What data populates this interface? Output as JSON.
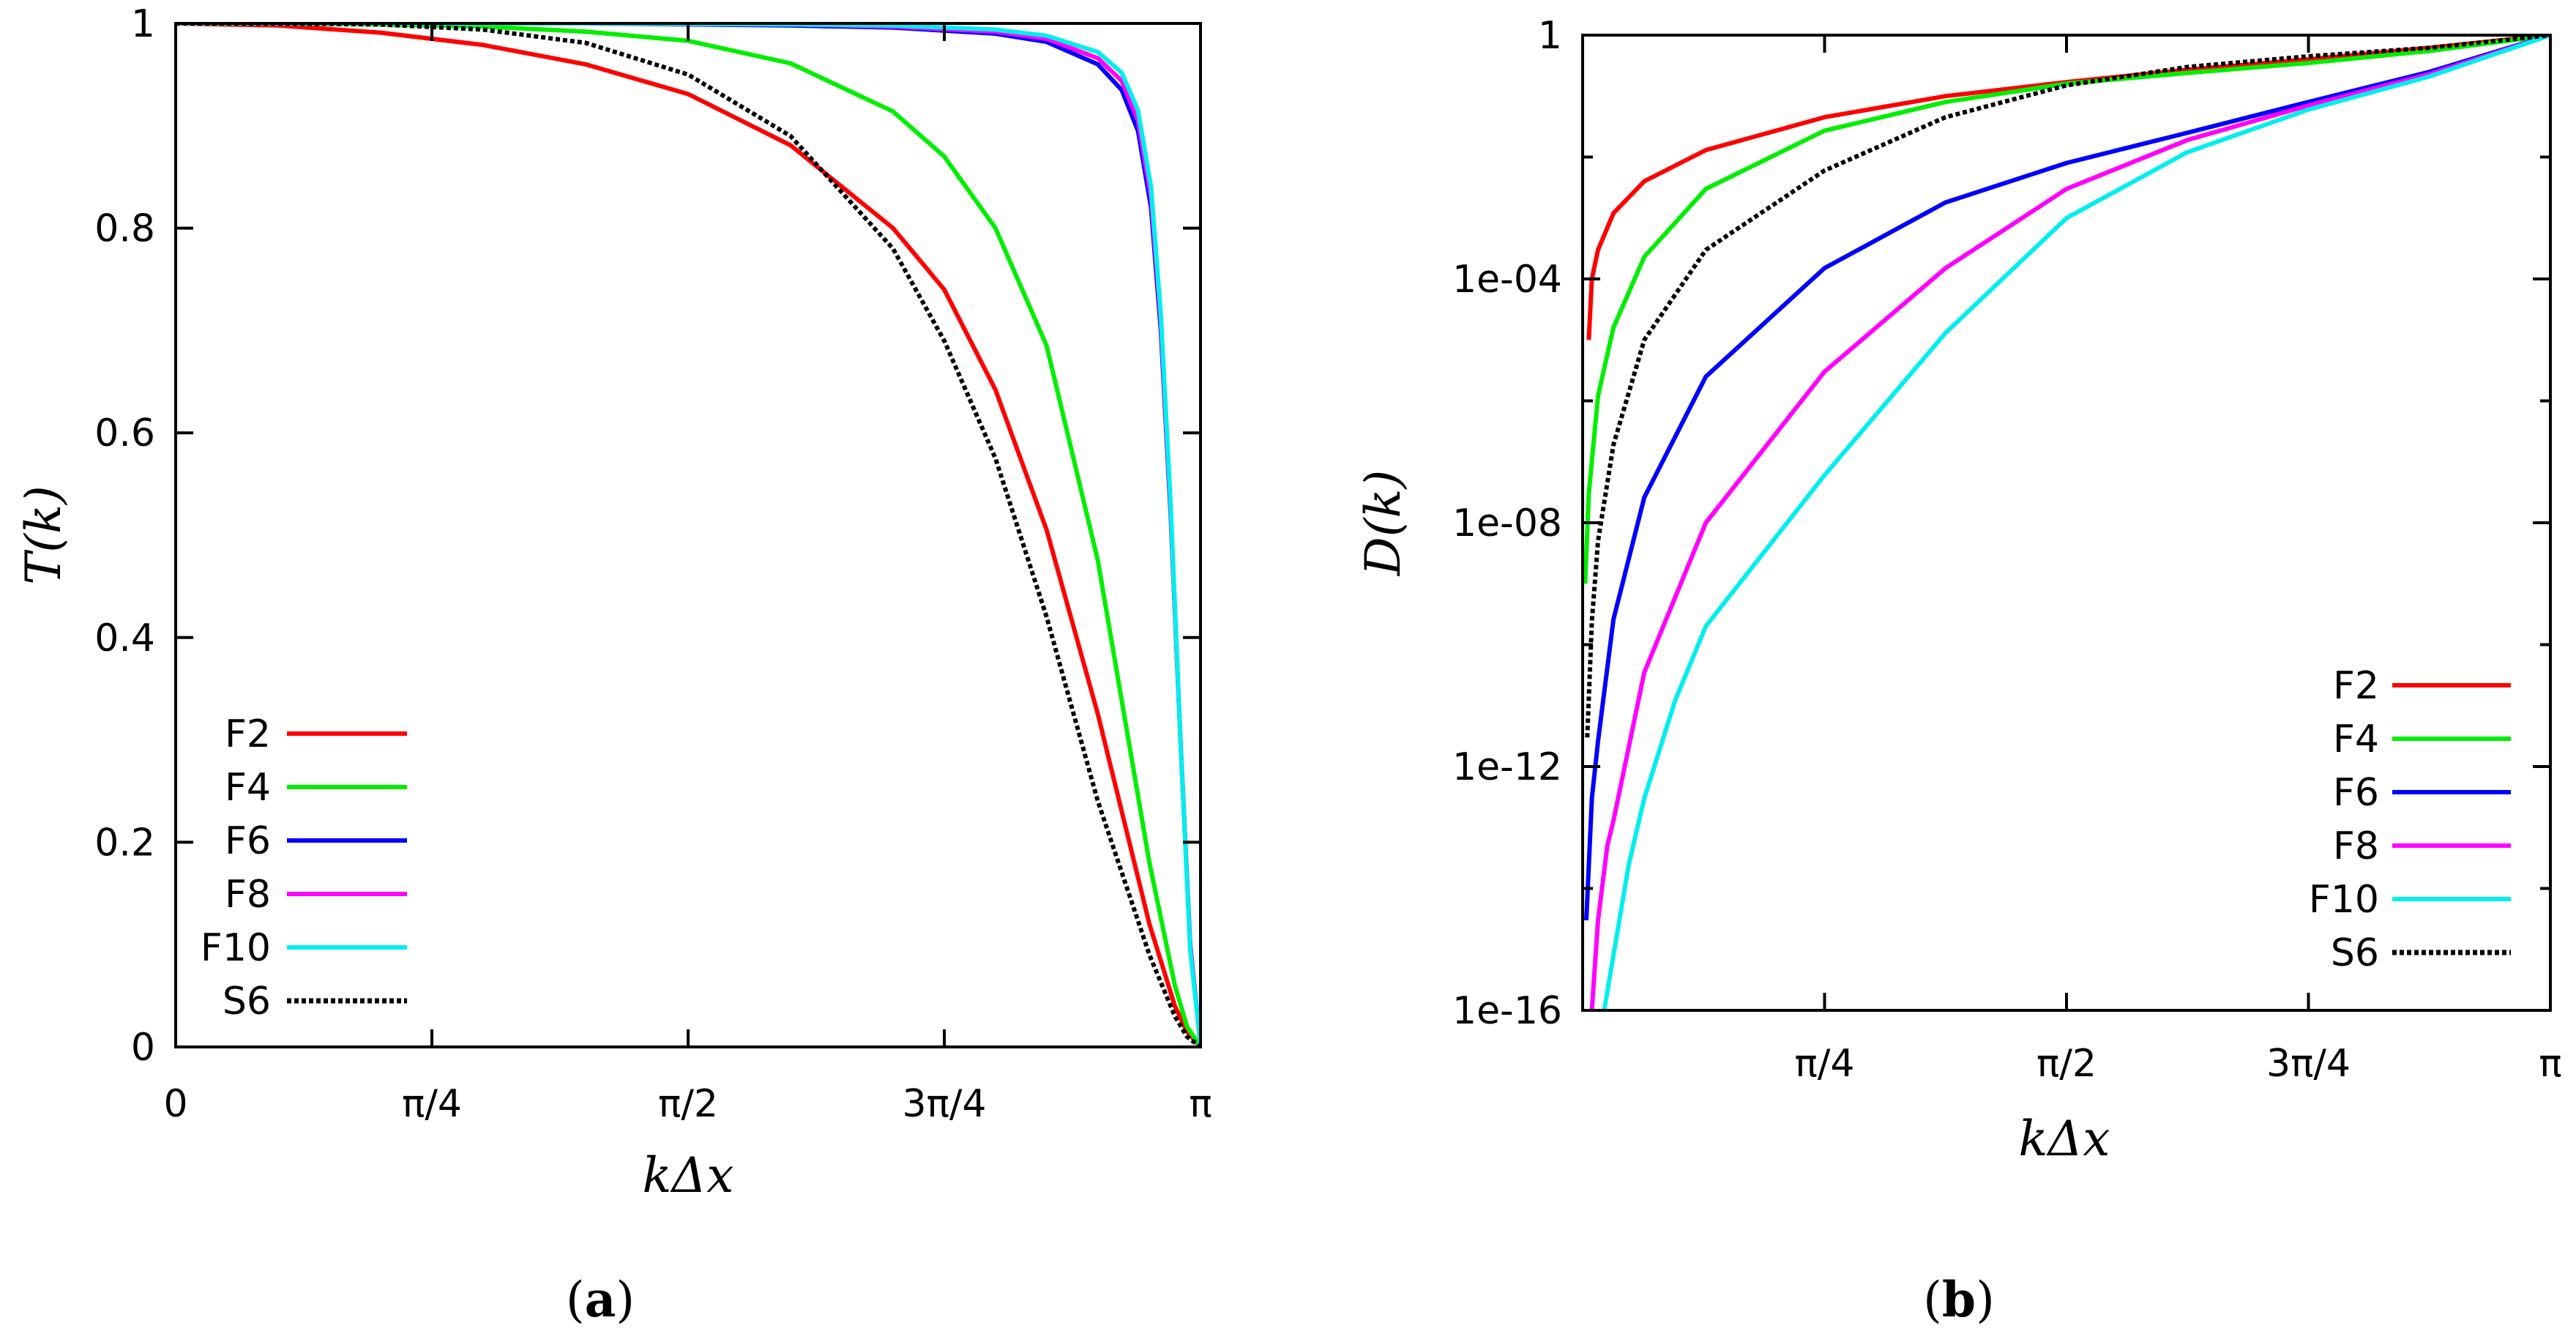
{
  "chart_data": [
    {
      "panel": "a",
      "type": "line",
      "caption_label": "a",
      "xlabel": "kΔx",
      "ylabel": "T(k)",
      "xlim": [
        0,
        3.14159265
      ],
      "ylim": [
        0,
        1
      ],
      "x_ticks": [
        {
          "value": 0,
          "label": "0"
        },
        {
          "value": 0.78539816,
          "label": "π/4"
        },
        {
          "value": 1.57079633,
          "label": "π/2"
        },
        {
          "value": 2.35619449,
          "label": "3π/4"
        },
        {
          "value": 3.14159265,
          "label": "π"
        }
      ],
      "y_ticks": [
        {
          "value": 0,
          "label": "0"
        },
        {
          "value": 0.2,
          "label": "0.2"
        },
        {
          "value": 0.4,
          "label": "0.4"
        },
        {
          "value": 0.6,
          "label": "0.6"
        },
        {
          "value": 0.8,
          "label": "0.8"
        },
        {
          "value": 1,
          "label": "1"
        }
      ],
      "legend_position": "bottom-left",
      "series": [
        {
          "name": "F2",
          "color": "#ff0000",
          "dashed": false,
          "x": [
            0,
            0.314,
            0.628,
            0.942,
            1.257,
            1.571,
            1.885,
            2.199,
            2.356,
            2.513,
            2.67,
            2.827,
            2.985,
            3.063,
            3.1,
            3.142
          ],
          "y": [
            1.0,
            0.998,
            0.991,
            0.979,
            0.96,
            0.931,
            0.881,
            0.8,
            0.74,
            0.642,
            0.505,
            0.325,
            0.12,
            0.04,
            0.015,
            0.0
          ]
        },
        {
          "name": "F4",
          "color": "#00ee00",
          "dashed": false,
          "x": [
            0,
            0.314,
            0.628,
            0.942,
            1.257,
            1.571,
            1.885,
            2.199,
            2.356,
            2.513,
            2.67,
            2.827,
            2.985,
            3.063,
            3.1,
            3.142
          ],
          "y": [
            1.0,
            1.0,
            0.999,
            0.997,
            0.992,
            0.983,
            0.961,
            0.914,
            0.87,
            0.8,
            0.685,
            0.475,
            0.18,
            0.06,
            0.02,
            0.0
          ]
        },
        {
          "name": "F6",
          "color": "#0000ff",
          "dashed": false,
          "x": [
            0,
            0.628,
            1.257,
            1.885,
            2.199,
            2.513,
            2.67,
            2.827,
            2.9,
            2.95,
            2.99,
            3.02,
            3.05,
            3.08,
            3.11,
            3.142
          ],
          "y": [
            1.0,
            1.0,
            1.0,
            0.998,
            0.996,
            0.99,
            0.982,
            0.96,
            0.935,
            0.895,
            0.82,
            0.7,
            0.52,
            0.3,
            0.1,
            0.0
          ]
        },
        {
          "name": "F8",
          "color": "#ff00ff",
          "dashed": false,
          "x": [
            0,
            0.628,
            1.257,
            1.885,
            2.199,
            2.513,
            2.67,
            2.827,
            2.9,
            2.95,
            2.99,
            3.02,
            3.05,
            3.08,
            3.11,
            3.142
          ],
          "y": [
            1.0,
            1.0,
            1.0,
            0.999,
            0.997,
            0.992,
            0.985,
            0.966,
            0.944,
            0.905,
            0.83,
            0.708,
            0.525,
            0.3,
            0.098,
            0.0
          ]
        },
        {
          "name": "F10",
          "color": "#00eeee",
          "dashed": false,
          "x": [
            0,
            0.628,
            1.257,
            1.885,
            2.199,
            2.513,
            2.67,
            2.827,
            2.9,
            2.95,
            2.99,
            3.02,
            3.05,
            3.08,
            3.11,
            3.142
          ],
          "y": [
            1.0,
            1.0,
            1.0,
            0.999,
            0.998,
            0.994,
            0.988,
            0.972,
            0.952,
            0.915,
            0.84,
            0.715,
            0.53,
            0.3,
            0.095,
            0.0
          ]
        },
        {
          "name": "S6",
          "color": "#000000",
          "dashed": true,
          "x": [
            0,
            0.314,
            0.628,
            0.942,
            1.257,
            1.571,
            1.885,
            2.199,
            2.356,
            2.513,
            2.67,
            2.827,
            2.985,
            3.063,
            3.1,
            3.142
          ],
          "y": [
            1.0,
            1.0,
            0.999,
            0.994,
            0.981,
            0.95,
            0.89,
            0.78,
            0.69,
            0.575,
            0.42,
            0.24,
            0.09,
            0.03,
            0.01,
            0.0
          ]
        }
      ]
    },
    {
      "panel": "b",
      "type": "line",
      "caption_label": "b",
      "xlabel": "kΔx",
      "ylabel": "D(k)",
      "yscale": "log",
      "xlim": [
        0,
        3.14159265
      ],
      "ylim": [
        1e-16,
        1
      ],
      "x_ticks": [
        {
          "value": 0.78539816,
          "label": "π/4"
        },
        {
          "value": 1.57079633,
          "label": "π/2"
        },
        {
          "value": 2.35619449,
          "label": "3π/4"
        },
        {
          "value": 3.14159265,
          "label": "π"
        }
      ],
      "y_ticks": [
        {
          "value": 1e-16,
          "label": "1e-16"
        },
        {
          "value": 1e-12,
          "label": "1e-12"
        },
        {
          "value": 1e-08,
          "label": "1e-08"
        },
        {
          "value": 0.0001,
          "label": "1e-04"
        },
        {
          "value": 1,
          "label": "1"
        }
      ],
      "y_minor_ticks": [
        1e-14,
        1e-10,
        1e-06,
        0.01
      ],
      "legend_position": "right-center",
      "series": [
        {
          "name": "F2",
          "color": "#ff0000",
          "dashed": false,
          "x": [
            0.02,
            0.03,
            0.05,
            0.1,
            0.2,
            0.4,
            0.785,
            1.178,
            1.571,
            1.963,
            2.356,
            2.749,
            3.142
          ],
          "y": [
            1e-05,
            0.0001,
            0.0003,
            0.0012,
            0.004,
            0.013,
            0.045,
            0.1,
            0.17,
            0.27,
            0.4,
            0.62,
            1.0
          ]
        },
        {
          "name": "F4",
          "color": "#00ee00",
          "dashed": false,
          "x": [
            0.008,
            0.02,
            0.05,
            0.1,
            0.2,
            0.4,
            0.785,
            1.178,
            1.571,
            1.963,
            2.356,
            2.749,
            3.142
          ],
          "y": [
            1e-09,
            3e-08,
            1.2e-06,
            1.6e-05,
            0.00023,
            0.003,
            0.027,
            0.08,
            0.16,
            0.24,
            0.35,
            0.55,
            1.0
          ]
        },
        {
          "name": "F6",
          "color": "#0000ff",
          "dashed": false,
          "x": [
            0.012,
            0.03,
            0.05,
            0.1,
            0.2,
            0.4,
            0.785,
            1.178,
            1.571,
            1.963,
            2.356,
            2.749,
            3.142
          ],
          "y": [
            3e-15,
            3e-13,
            2.6e-12,
            2.6e-10,
            2.6e-08,
            2.5e-06,
            0.00015,
            0.0018,
            0.008,
            0.025,
            0.08,
            0.25,
            1.0
          ]
        },
        {
          "name": "F8",
          "color": "#ff00ff",
          "dashed": false,
          "x": [
            0.03,
            0.05,
            0.08,
            0.1,
            0.2,
            0.4,
            0.785,
            1.178,
            1.571,
            1.963,
            2.356,
            2.749,
            3.142
          ],
          "y": [
            1e-16,
            3e-15,
            5e-14,
            1.3e-13,
            3.5e-11,
            1e-08,
            3e-06,
            0.00015,
            0.003,
            0.019,
            0.07,
            0.23,
            1.0
          ]
        },
        {
          "name": "F10",
          "color": "#00eeee",
          "dashed": false,
          "x": [
            0.07,
            0.1,
            0.15,
            0.2,
            0.3,
            0.4,
            0.785,
            1.178,
            1.571,
            1.963,
            2.356,
            2.749,
            3.142
          ],
          "y": [
            1e-16,
            8e-16,
            2.5e-14,
            3e-13,
            1.2e-11,
            2e-10,
            6e-08,
            1.3e-05,
            0.001,
            0.012,
            0.06,
            0.21,
            1.0
          ]
        },
        {
          "name": "S6",
          "color": "#000000",
          "dashed": true,
          "x": [
            0.015,
            0.03,
            0.05,
            0.1,
            0.2,
            0.4,
            0.785,
            1.178,
            1.571,
            1.963,
            2.356,
            2.749,
            3.142
          ],
          "y": [
            3e-12,
            2.4e-10,
            5e-09,
            1.9e-07,
            1e-05,
            0.0003,
            0.006,
            0.045,
            0.15,
            0.3,
            0.45,
            0.62,
            1.0
          ]
        }
      ]
    }
  ]
}
